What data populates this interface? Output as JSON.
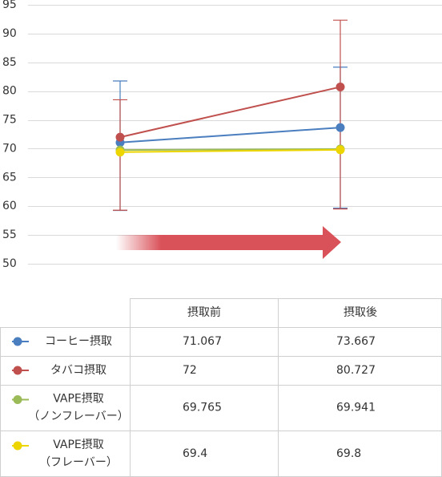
{
  "chart_data": {
    "type": "line",
    "categories": [
      "摂取前",
      "摂取後"
    ],
    "ylim": [
      50,
      95
    ],
    "yticks": [
      50,
      55,
      60,
      65,
      70,
      75,
      80,
      85,
      90,
      95
    ],
    "grid": true,
    "series": [
      {
        "name": "コーヒー摂取",
        "color": "#4a7ebf",
        "values": [
          71.067,
          73.667
        ],
        "error_plus": [
          10.7,
          10.5
        ],
        "error_minus": [
          11.8,
          14
        ]
      },
      {
        "name": "タバコ摂取",
        "color": "#c0504d",
        "values": [
          72,
          80.727
        ],
        "error_plus": [
          6.5,
          11.6
        ],
        "error_minus": [
          12.7,
          21.2
        ]
      },
      {
        "name": "VAPE摂取\n（ノンフレーバー）",
        "color": "#9bbb59",
        "values": [
          69.765,
          69.941
        ]
      },
      {
        "name": "VAPE摂取\n（フレーバー）",
        "color": "#ecd500",
        "values": [
          69.4,
          69.8
        ]
      }
    ]
  }
}
